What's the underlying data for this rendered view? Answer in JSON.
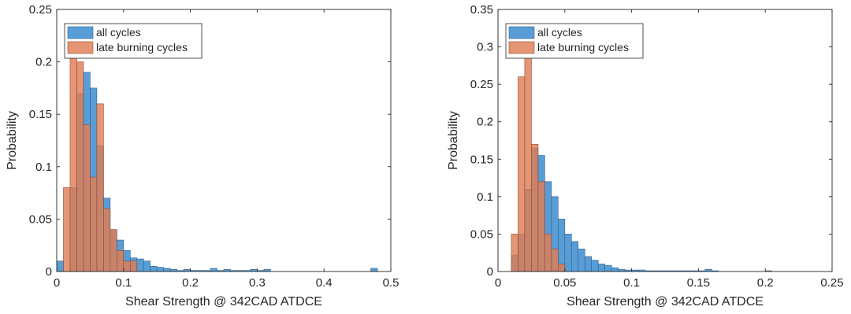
{
  "colors": {
    "all_cycles": "#3c8ccf",
    "late_burning": "#e07e55",
    "axis": "#262626"
  },
  "chart_data": [
    {
      "type": "histogram",
      "xlabel": "Shear Strength @ 342CAD ATDCE",
      "ylabel": "Probability",
      "xlim": [
        0,
        0.5
      ],
      "ylim": [
        0,
        0.25
      ],
      "xticks": [
        0,
        0.1,
        0.2,
        0.3,
        0.4,
        0.5
      ],
      "xtick_labels": [
        "0",
        "0.1",
        "0.2",
        "0.3",
        "0.4",
        "0.5"
      ],
      "yticks": [
        0,
        0.05,
        0.1,
        0.15,
        0.2,
        0.25
      ],
      "ytick_labels": [
        "0",
        "0.05",
        "0.1",
        "0.15",
        "0.2",
        "0.25"
      ],
      "grid": false,
      "legend_position": "top-left",
      "bin_width": 0.01,
      "series": [
        {
          "name": "all cycles",
          "bin_edges_start": 0,
          "values": [
            0.01,
            0,
            0.08,
            0.17,
            0.19,
            0.175,
            0.12,
            0.07,
            0.04,
            0.03,
            0.02,
            0.013,
            0.012,
            0.01,
            0.005,
            0.004,
            0.003,
            0.002,
            0.001,
            0.002,
            0.001,
            0.001,
            0.001,
            0.003,
            0.001,
            0.002,
            0.001,
            0.001,
            0.001,
            0.002,
            0.001,
            0.002,
            0,
            0,
            0,
            0,
            0,
            0,
            0,
            0,
            0,
            0,
            0,
            0,
            0,
            0,
            0,
            0.003
          ]
        },
        {
          "name": "late burning cycles",
          "bin_edges_start": 0.01,
          "values": [
            0.08,
            0.22,
            0.2,
            0.14,
            0.09,
            0.16,
            0.06,
            0.04,
            0.02,
            0.01,
            0.01
          ]
        }
      ]
    },
    {
      "type": "histogram",
      "xlabel": "Shear Strength @ 342CAD ATDCE",
      "ylabel": "Probability",
      "xlim": [
        0,
        0.25
      ],
      "ylim": [
        0,
        0.35
      ],
      "xticks": [
        0,
        0.05,
        0.1,
        0.15,
        0.2,
        0.25
      ],
      "xtick_labels": [
        "0",
        "0.05",
        "0.1",
        "0.15",
        "0.2",
        "0.25"
      ],
      "yticks": [
        0,
        0.05,
        0.1,
        0.15,
        0.2,
        0.25,
        0.3,
        0.35
      ],
      "ytick_labels": [
        "0",
        "0.05",
        "0.1",
        "0.15",
        "0.2",
        "0.25",
        "0.3",
        "0.35"
      ],
      "grid": false,
      "legend_position": "top-left",
      "bin_width": 0.005,
      "series": [
        {
          "name": "all cycles",
          "bin_edges_start": 0.005,
          "values": [
            0,
            0.022,
            0.05,
            0.11,
            0.165,
            0.155,
            0.12,
            0.1,
            0.07,
            0.05,
            0.04,
            0.03,
            0.02,
            0.015,
            0.01,
            0.008,
            0.005,
            0.003,
            0.002,
            0.002,
            0.002,
            0.001,
            0.001,
            0.001,
            0.001,
            0.001,
            0.001,
            0.001,
            0.001,
            0.001,
            0.003,
            0.001,
            0,
            0,
            0,
            0,
            0,
            0,
            0,
            0.001
          ]
        },
        {
          "name": "late burning cycles",
          "bin_edges_start": 0.01,
          "values": [
            0.05,
            0.26,
            0.33,
            0.17,
            0.12,
            0.05,
            0.03,
            0.01
          ]
        }
      ]
    }
  ]
}
